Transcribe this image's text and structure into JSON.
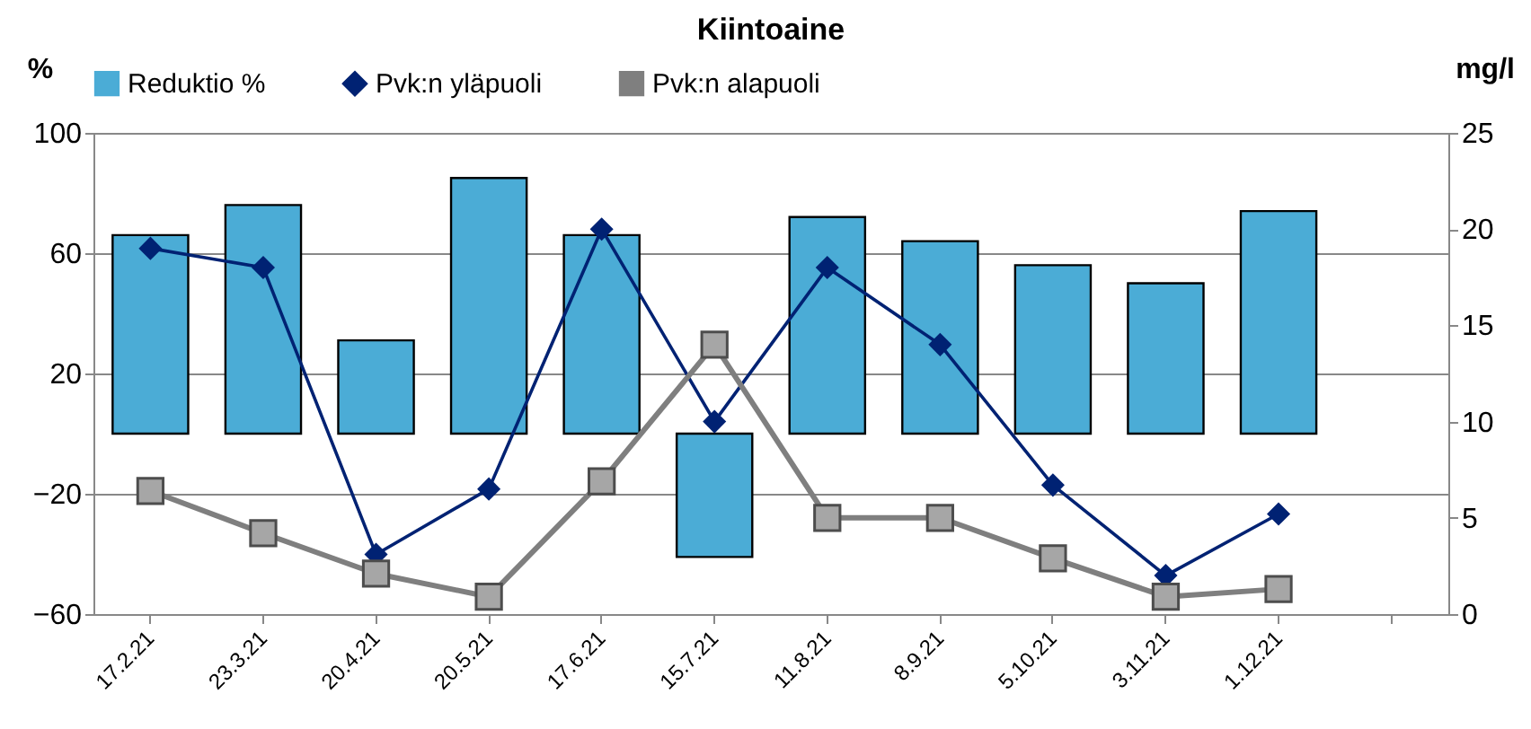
{
  "chart_data": {
    "type": "bar",
    "title": "Kiintoaine",
    "ylabel": "%",
    "y2label": "mg/l",
    "categories": [
      "17.2.21",
      "23.3.21",
      "20.4.21",
      "20.5.21",
      "17.6.21",
      "15.7.21",
      "11.8.21",
      "8.9.21",
      "5.10.21",
      "3.11.21",
      "1.12.21",
      null
    ],
    "series": [
      {
        "name": "Reduktio %",
        "color": "#4bacd6",
        "values": [
          66,
          76,
          31,
          85,
          66,
          -41,
          72,
          64,
          56,
          50,
          74,
          null
        ]
      },
      {
        "name": "Pvk:n yläpuoli",
        "type": "line",
        "axis": "y2",
        "marker": "diamond",
        "color": "#002273",
        "values": [
          19,
          18,
          3.1,
          6.5,
          20,
          10,
          18,
          14,
          6.7,
          2,
          5.2,
          null
        ]
      },
      {
        "name": "Pvk:n alapuoli",
        "type": "line",
        "axis": "y2",
        "marker": "square",
        "color": "#7f7f7f",
        "values": [
          6.4,
          4.2,
          2.1,
          0.9,
          6.9,
          14,
          5,
          5,
          2.9,
          0.9,
          1.3,
          null
        ]
      }
    ],
    "ylim": [
      -60,
      100
    ],
    "yticks": [
      -60,
      -20,
      20,
      60,
      100
    ],
    "y2lim": [
      0,
      25
    ],
    "y2ticks": [
      0,
      5,
      10,
      15,
      20,
      25
    ],
    "grid": "y",
    "legend": "top"
  }
}
